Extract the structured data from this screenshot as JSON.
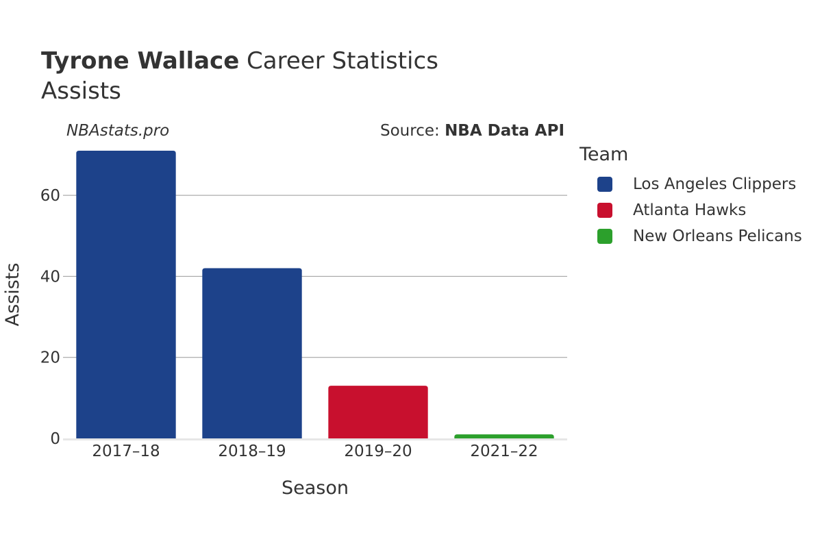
{
  "header": {
    "title_bold": "Tyrone Wallace",
    "title_rest": " Career Statistics",
    "subtitle": "Assists",
    "watermark": "NBAstats.pro",
    "source_prefix": "Source: ",
    "source_name": "NBA Data API"
  },
  "legend": {
    "title": "Team",
    "items": [
      {
        "label": "Los Angeles Clippers",
        "color": "#1d428a"
      },
      {
        "label": "Atlanta Hawks",
        "color": "#c8102e"
      },
      {
        "label": "New Orleans Pelicans",
        "color": "#2ca02c"
      }
    ]
  },
  "chart_data": {
    "type": "bar",
    "xlabel": "Season",
    "ylabel": "Assists",
    "categories": [
      "2017–18",
      "2018–19",
      "2019–20",
      "2021–22"
    ],
    "values": [
      71,
      42,
      13,
      1
    ],
    "teams": [
      "Los Angeles Clippers",
      "Los Angeles Clippers",
      "Atlanta Hawks",
      "New Orleans Pelicans"
    ],
    "colors": [
      "#1d428a",
      "#1d428a",
      "#c8102e",
      "#2ca02c"
    ],
    "ylim": [
      0,
      71
    ],
    "yticks": [
      0,
      20,
      40,
      60
    ],
    "grid": true,
    "legend_position": "right"
  }
}
